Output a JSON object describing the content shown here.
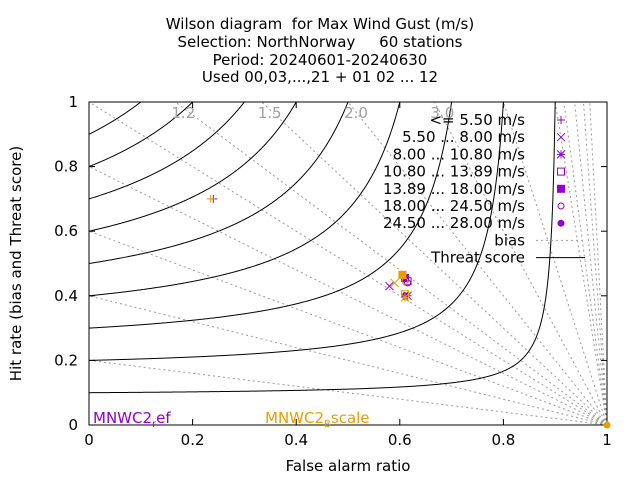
{
  "chart_data": {
    "type": "scatter",
    "title_lines": [
      "Wilson diagram  for Max Wind Gust (m/s)",
      "Selection: NorthNorway     60 stations",
      "Period: 20240601-20240630",
      "Used 00,03,...,21 + 01 02 ... 12"
    ],
    "xlabel": "False alarm ratio",
    "ylabel": "Hit rate (bias and Threat score)",
    "xlim": [
      0,
      1
    ],
    "ylim": [
      0,
      1
    ],
    "xticks": [
      "0",
      "0.2",
      "0.4",
      "0.6",
      "0.8",
      "1"
    ],
    "yticks": [
      "0",
      "0.2",
      "0.4",
      "0.6",
      "0.8",
      "1"
    ],
    "bias_labels": [
      "1.2",
      "1.5",
      "2.0",
      "3.0"
    ],
    "legend_position": "top-right",
    "legend": [
      {
        "label": "<= 5.50 m/s",
        "marker": "plus"
      },
      {
        "label": "5.50 ... 8.00 m/s",
        "marker": "cross"
      },
      {
        "label": "8.00 ... 10.80 m/s",
        "marker": "star"
      },
      {
        "label": "10.80 ... 13.89 m/s",
        "marker": "square-open"
      },
      {
        "label": "13.89 ... 18.00 m/s",
        "marker": "square-filled"
      },
      {
        "label": "18.00 ... 24.50 m/s",
        "marker": "circle-open"
      },
      {
        "label": "24.50 ... 28.00 m/s",
        "marker": "circle-filled"
      },
      {
        "label": "bias",
        "marker": "dotted-line"
      },
      {
        "label": "Threat score",
        "marker": "solid-line"
      }
    ],
    "series": [
      {
        "name": "MNWC2_ref",
        "color": "#9400d3",
        "points": [
          {
            "class": "<= 5.50 m/s",
            "x": 0.24,
            "y": 0.7
          },
          {
            "class": "5.50 ... 8.00 m/s",
            "x": 0.58,
            "y": 0.43
          },
          {
            "class": "8.00 ... 10.80 m/s",
            "x": 0.615,
            "y": 0.4
          },
          {
            "class": "10.80 ... 13.89 m/s",
            "x": 0.615,
            "y": 0.445
          },
          {
            "class": "13.89 ... 18.00 m/s",
            "x": 0.61,
            "y": 0.455
          },
          {
            "class": "18.00 ... 24.50 m/s",
            "x": 0.615,
            "y": 0.44
          },
          {
            "class": "24.50 ... 28.00 m/s",
            "x": 0.61,
            "y": 0.4
          }
        ]
      },
      {
        "name": "MNWC2_Bscale",
        "color": "#e69f00",
        "points": [
          {
            "class": "<= 5.50 m/s",
            "x": 0.235,
            "y": 0.7
          },
          {
            "class": "5.50 ... 8.00 m/s",
            "x": 0.59,
            "y": 0.44
          },
          {
            "class": "8.00 ... 10.80 m/s",
            "x": 0.61,
            "y": 0.395
          },
          {
            "class": "10.80 ... 13.89 m/s",
            "x": 0.61,
            "y": 0.405
          },
          {
            "class": "13.89 ... 18.00 m/s",
            "x": 0.605,
            "y": 0.465
          },
          {
            "class": "18.00 ... 24.50 m/s",
            "x": 0.61,
            "y": 0.445
          },
          {
            "class": "24.50 ... 28.00 m/s",
            "x": 1.0,
            "y": 0.0
          }
        ]
      }
    ]
  }
}
